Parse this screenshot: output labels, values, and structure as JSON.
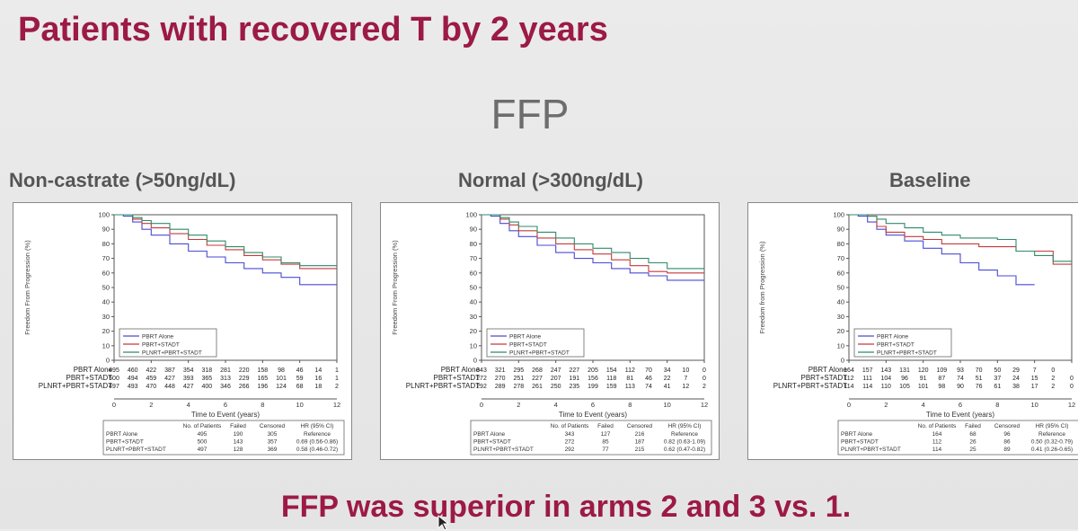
{
  "slide": {
    "title": "Patients with recovered T by 2 years",
    "subtitle": "FFP",
    "conclusion": "FFP was superior in arms 2 and 3 vs. 1."
  },
  "colors": {
    "title": "#9c1a45",
    "series": [
      "#4a4ad6",
      "#c43a3a",
      "#2e8b6a"
    ]
  },
  "chart_data": [
    {
      "type": "line",
      "heading": "Non-castrate (>50ng/dL)",
      "xlabel": "Time to Event (years)",
      "ylabel": "Freedom From Progression (%)",
      "xlim": [
        0,
        12
      ],
      "ylim": [
        0,
        100
      ],
      "xticks": [
        0,
        2,
        4,
        6,
        8,
        10,
        12
      ],
      "yticks": [
        0,
        10,
        20,
        30,
        40,
        50,
        60,
        70,
        80,
        90,
        100
      ],
      "series": [
        {
          "name": "PBRT Alone",
          "x": [
            0,
            0.5,
            1,
            1.5,
            2,
            3,
            4,
            5,
            6,
            7,
            8,
            9,
            10,
            11,
            12
          ],
          "y": [
            100,
            99,
            95,
            90,
            86,
            80,
            75,
            71,
            67,
            63,
            60,
            57,
            52,
            52,
            52
          ]
        },
        {
          "name": "PBRT+STADT",
          "x": [
            0,
            0.5,
            1,
            1.5,
            2,
            3,
            4,
            5,
            6,
            7,
            8,
            9,
            10,
            11,
            12
          ],
          "y": [
            100,
            100,
            97,
            94,
            91,
            87,
            83,
            79,
            76,
            72,
            69,
            66,
            63,
            63,
            63
          ]
        },
        {
          "name": "PLNRT+PBRT+STADT",
          "x": [
            0,
            0.5,
            1,
            1.5,
            2,
            3,
            4,
            5,
            6,
            7,
            8,
            9,
            10,
            11,
            12
          ],
          "y": [
            100,
            100,
            98,
            96,
            94,
            90,
            86,
            82,
            78,
            74,
            71,
            67,
            65,
            65,
            65
          ]
        }
      ],
      "risk_table": {
        "times": [
          0,
          1,
          2,
          3,
          4,
          5,
          6,
          7,
          8,
          9,
          10,
          11,
          12
        ],
        "rows": [
          {
            "label": "PBRT Alone",
            "values": [
              "495",
              "460",
              "422",
              "387",
              "354",
              "318",
              "281",
              "220",
              "158",
              "98",
              "46",
              "14",
              "1"
            ]
          },
          {
            "label": "PBRT+STADT",
            "values": [
              "500",
              "494",
              "459",
              "427",
              "393",
              "365",
              "313",
              "229",
              "165",
              "101",
              "59",
              "16",
              "1"
            ]
          },
          {
            "label": "PLNRT+PBRT+STADT",
            "values": [
              "497",
              "493",
              "470",
              "448",
              "427",
              "400",
              "346",
              "266",
              "196",
              "124",
              "68",
              "18",
              "2"
            ]
          }
        ]
      },
      "stats_table": {
        "headers": [
          "No. of Patients",
          "Failed",
          "Censored",
          "HR (95% CI)"
        ],
        "rows": [
          {
            "label": "PBRT Alone",
            "values": [
              "495",
              "190",
              "305",
              "Reference"
            ]
          },
          {
            "label": "PBRT+STADT",
            "values": [
              "500",
              "143",
              "357",
              "0.69 (0.56-0.86)"
            ]
          },
          {
            "label": "PLNRT+PBRT+STADT",
            "values": [
              "497",
              "128",
              "369",
              "0.58 (0.46-0.72)"
            ]
          }
        ]
      }
    },
    {
      "type": "line",
      "heading": "Normal (>300ng/dL)",
      "xlabel": "Time to Event (years)",
      "ylabel": "Freedom From Progression (%)",
      "xlim": [
        0,
        12
      ],
      "ylim": [
        0,
        100
      ],
      "xticks": [
        0,
        2,
        4,
        6,
        8,
        10,
        12
      ],
      "yticks": [
        0,
        10,
        20,
        30,
        40,
        50,
        60,
        70,
        80,
        90,
        100
      ],
      "series": [
        {
          "name": "PBRT Alone",
          "x": [
            0,
            0.5,
            1,
            1.5,
            2,
            3,
            4,
            5,
            6,
            7,
            8,
            9,
            10,
            11,
            12
          ],
          "y": [
            100,
            99,
            94,
            89,
            85,
            79,
            74,
            70,
            67,
            63,
            60,
            58,
            55,
            55,
            55
          ]
        },
        {
          "name": "PBRT+STADT",
          "x": [
            0,
            0.5,
            1,
            1.5,
            2,
            3,
            4,
            5,
            6,
            7,
            8,
            9,
            10,
            11,
            12
          ],
          "y": [
            100,
            100,
            97,
            93,
            89,
            84,
            80,
            76,
            73,
            69,
            65,
            61,
            60,
            60,
            60
          ]
        },
        {
          "name": "PLNRT+PBRT+STADT",
          "x": [
            0,
            0.5,
            1,
            1.5,
            2,
            3,
            4,
            5,
            6,
            7,
            8,
            9,
            10,
            11,
            12
          ],
          "y": [
            100,
            100,
            98,
            95,
            92,
            88,
            84,
            80,
            77,
            74,
            70,
            67,
            63,
            63,
            63
          ]
        }
      ],
      "risk_table": {
        "times": [
          0,
          1,
          2,
          3,
          4,
          5,
          6,
          7,
          8,
          9,
          10,
          11,
          12
        ],
        "rows": [
          {
            "label": "PBRT Alone",
            "values": [
              "343",
              "321",
              "295",
              "268",
              "247",
              "227",
              "205",
              "154",
              "112",
              "70",
              "34",
              "10",
              "0"
            ]
          },
          {
            "label": "PBRT+STADT",
            "values": [
              "272",
              "270",
              "251",
              "227",
              "207",
              "191",
              "156",
              "118",
              "81",
              "46",
              "22",
              "7",
              "0"
            ]
          },
          {
            "label": "PLNRT+PBRT+STADT",
            "values": [
              "292",
              "289",
              "278",
              "261",
              "250",
              "235",
              "199",
              "159",
              "113",
              "74",
              "41",
              "12",
              "2"
            ]
          }
        ]
      },
      "stats_table": {
        "headers": [
          "No. of Patients",
          "Failed",
          "Censored",
          "HR (95% CI)"
        ],
        "rows": [
          {
            "label": "PBRT Alone",
            "values": [
              "343",
              "127",
              "216",
              "Reference"
            ]
          },
          {
            "label": "PBRT+STADT",
            "values": [
              "272",
              "85",
              "187",
              "0.82 (0.63-1.09)"
            ]
          },
          {
            "label": "PLNRT+PBRT+STADT",
            "values": [
              "292",
              "77",
              "215",
              "0.62 (0.47-0.82)"
            ]
          }
        ]
      }
    },
    {
      "type": "line",
      "heading": "Baseline",
      "xlabel": "Time to Event (years)",
      "ylabel": "Freedom from Progression (%)",
      "xlim": [
        0,
        12
      ],
      "ylim": [
        0,
        100
      ],
      "xticks": [
        0,
        2,
        4,
        6,
        8,
        10,
        12
      ],
      "yticks": [
        0,
        10,
        20,
        30,
        40,
        50,
        60,
        70,
        80,
        90,
        100
      ],
      "series": [
        {
          "name": "PBRT Alone",
          "x": [
            0,
            0.5,
            1,
            1.5,
            2,
            3,
            4,
            5,
            6,
            7,
            8,
            9,
            10
          ],
          "y": [
            100,
            99,
            95,
            90,
            86,
            82,
            77,
            73,
            67,
            62,
            58,
            52,
            52
          ]
        },
        {
          "name": "PBRT+STADT",
          "x": [
            0,
            0.5,
            1,
            1.5,
            2,
            3,
            4,
            5,
            6,
            7,
            8,
            9,
            10,
            11,
            12
          ],
          "y": [
            100,
            100,
            99,
            92,
            88,
            85,
            83,
            80,
            80,
            78,
            78,
            75,
            75,
            66,
            66
          ]
        },
        {
          "name": "PLNRT+PBRT+STADT",
          "x": [
            0,
            0.5,
            1,
            1.5,
            2,
            3,
            4,
            5,
            6,
            7,
            8,
            9,
            10,
            11,
            12
          ],
          "y": [
            100,
            100,
            99,
            97,
            94,
            91,
            88,
            86,
            84,
            84,
            83,
            75,
            72,
            68,
            68
          ]
        }
      ],
      "risk_table": {
        "times": [
          0,
          1,
          2,
          3,
          4,
          5,
          6,
          7,
          8,
          9,
          10,
          11,
          12
        ],
        "rows": [
          {
            "label": "PBRT Alone",
            "values": [
              "164",
              "157",
              "143",
              "131",
              "120",
              "109",
              "93",
              "70",
              "50",
              "29",
              "7",
              "0",
              ""
            ]
          },
          {
            "label": "PBRT+STADT",
            "values": [
              "112",
              "111",
              "104",
              "96",
              "91",
              "87",
              "74",
              "51",
              "37",
              "24",
              "15",
              "2",
              "0"
            ]
          },
          {
            "label": "PLNRT+PBRT+STADT",
            "values": [
              "114",
              "114",
              "110",
              "105",
              "101",
              "98",
              "90",
              "76",
              "61",
              "38",
              "17",
              "2",
              "0"
            ]
          }
        ]
      },
      "stats_table": {
        "headers": [
          "No. of Patients",
          "Failed",
          "Censored",
          "HR (95% CI)"
        ],
        "rows": [
          {
            "label": "PBRT Alone",
            "values": [
              "164",
              "68",
              "96",
              "Reference"
            ]
          },
          {
            "label": "PBRT+STADT",
            "values": [
              "112",
              "26",
              "86",
              "0.50 (0.32-0.79)"
            ]
          },
          {
            "label": "PLNRT+PBRT+STADT",
            "values": [
              "114",
              "25",
              "89",
              "0.41 (0.26-0.65)"
            ]
          }
        ]
      }
    }
  ]
}
